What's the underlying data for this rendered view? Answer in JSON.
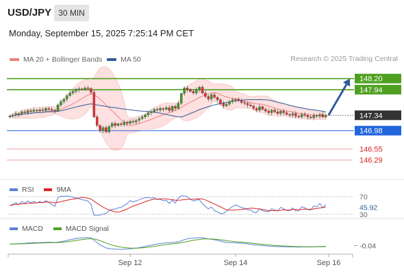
{
  "header": {
    "symbol": "USD/JPY",
    "interval": "30 MIN",
    "datetime": "Monday, September 15, 2025 7:25:14 PM CET"
  },
  "legend": {
    "ma20_label": "MA 20 + Bollinger Bands",
    "ma50_label": "MA 50",
    "research": "Research © 2025 Trading Central",
    "colors": {
      "ma20": "#f08080",
      "ma50": "#2f5b9a"
    }
  },
  "rsi_legend": {
    "rsi": "RSI",
    "ma9": "9MA",
    "colors": {
      "rsi": "#5b7fd6",
      "ma9": "#dd2222"
    }
  },
  "macd_legend": {
    "macd": "MACD",
    "signal": "MACD Signal",
    "colors": {
      "macd": "#5b7fd6",
      "signal": "#4fa020"
    }
  },
  "chart_data": [
    {
      "type": "candlestick",
      "title": "USD/JPY 30 MIN",
      "ylim": [
        145.9,
        148.5
      ],
      "current_price": 147.34,
      "levels": [
        {
          "value": 148.2,
          "label": "148.20",
          "kind": "resistance",
          "color": "#4fa020"
        },
        {
          "value": 147.94,
          "label": "147.94",
          "kind": "resistance",
          "color": "#4fa020"
        },
        {
          "value": 146.98,
          "label": "146.98",
          "kind": "support",
          "color": "#2266dd"
        },
        {
          "value": 146.55,
          "label": "146.55",
          "kind": "support",
          "color": "#dd2222"
        },
        {
          "value": 146.29,
          "label": "146.29",
          "kind": "support",
          "color": "#dd2222"
        }
      ],
      "forecast_arrow": {
        "from": 147.34,
        "to": 148.2
      },
      "x_tick_labels": [
        "Sep 12",
        "Sep 14",
        "Sep 16"
      ],
      "closes": [
        147.32,
        147.34,
        147.38,
        147.36,
        147.42,
        147.4,
        147.45,
        147.43,
        147.46,
        147.44,
        147.47,
        147.45,
        147.5,
        147.48,
        147.46,
        147.44,
        147.58,
        147.66,
        147.72,
        147.8,
        147.86,
        147.9,
        147.94,
        147.96,
        147.95,
        147.98,
        147.97,
        147.88,
        147.3,
        147.1,
        146.98,
        147.05,
        146.95,
        147.08,
        147.15,
        147.1,
        147.14,
        147.12,
        147.18,
        147.15,
        147.2,
        147.18,
        147.22,
        147.26,
        147.3,
        147.35,
        147.4,
        147.42,
        147.48,
        147.46,
        147.5,
        147.48,
        147.52,
        147.45,
        147.55,
        147.5,
        147.62,
        147.85,
        147.98,
        147.94,
        147.9,
        147.86,
        147.94,
        148.0,
        147.86,
        147.78,
        147.72,
        147.82,
        147.76,
        147.7,
        147.62,
        147.56,
        147.6,
        147.66,
        147.7,
        147.72,
        147.68,
        147.64,
        147.62,
        147.58,
        147.56,
        147.5,
        147.46,
        147.54,
        147.48,
        147.44,
        147.4,
        147.46,
        147.42,
        147.38,
        147.44,
        147.4,
        147.36,
        147.34,
        147.38,
        147.32,
        147.3,
        147.36,
        147.34,
        147.3,
        147.28,
        147.34,
        147.32,
        147.36,
        147.3,
        147.34
      ]
    },
    {
      "type": "line",
      "title": "RSI",
      "levels": [
        {
          "value": 70,
          "label": "70"
        },
        {
          "value": 30,
          "label": "30"
        }
      ],
      "current_value": 45.92,
      "current_label": "45.92",
      "ylim": [
        25,
        75
      ]
    },
    {
      "type": "line",
      "title": "MACD",
      "current_value": -0.04,
      "current_label": "-0.04",
      "ylim": [
        -0.2,
        0.24
      ]
    }
  ]
}
